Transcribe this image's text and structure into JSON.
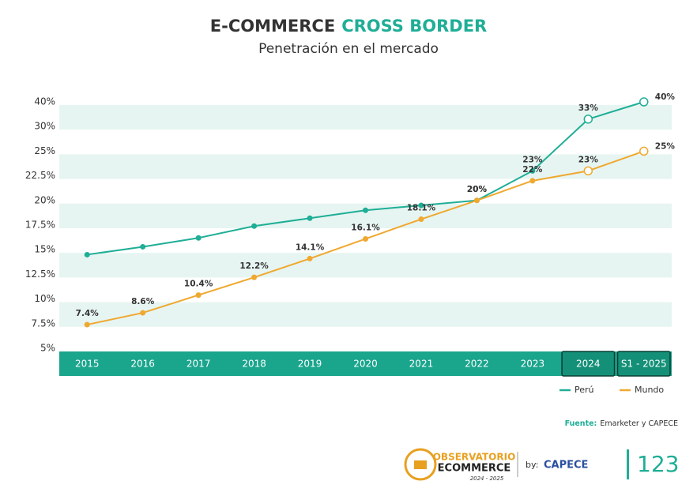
{
  "chart_data": {
    "type": "line",
    "title_parts": [
      "E-COMMERCE",
      "CROSS BORDER"
    ],
    "subtitle": "Penetración en el mercado",
    "categories": [
      "2015",
      "2016",
      "2017",
      "2018",
      "2019",
      "2020",
      "2021",
      "2022",
      "2023",
      "2024",
      "S1 - 2025"
    ],
    "series": [
      {
        "name": "Perú",
        "color": "#1fae96",
        "values": [
          14.5,
          15.3,
          16.2,
          17.4,
          18.2,
          19,
          19.5,
          20,
          23,
          33,
          40
        ],
        "value_labels": [
          null,
          null,
          null,
          null,
          null,
          null,
          null,
          "20%",
          "23%",
          "33%",
          "40%"
        ]
      },
      {
        "name": "Mundo",
        "color": "#f0a830",
        "values": [
          7.4,
          8.6,
          10.4,
          12.2,
          14.1,
          16.1,
          18.1,
          20,
          22,
          23,
          25
        ],
        "value_labels": [
          "7.4%",
          "8.6%",
          "10.4%",
          "12.2%",
          "14.1%",
          "16.1%",
          "18.1%",
          "20%",
          "22%",
          "23%",
          "25%"
        ]
      }
    ],
    "ylim": [
      5,
      40
    ],
    "yticks": [
      {
        "value": 5,
        "label": "5%"
      },
      {
        "value": 7.5,
        "label": "7.5%"
      },
      {
        "value": 10,
        "label": "10%"
      },
      {
        "value": 12.5,
        "label": "12.5%"
      },
      {
        "value": 15,
        "label": "15%"
      },
      {
        "value": 17.5,
        "label": "17.5%"
      },
      {
        "value": 20,
        "label": "20%"
      },
      {
        "value": 22.5,
        "label": "22.5%"
      },
      {
        "value": 25,
        "label": "25%"
      },
      {
        "value": 30,
        "label": "30%"
      },
      {
        "value": 40,
        "label": "40%"
      }
    ],
    "bands": true,
    "projection_start_index": 9,
    "legend": "bottom-right",
    "source": {
      "label": "Fuente:",
      "text": "Emarketer y CAPECE"
    }
  },
  "footer": {
    "logo_line1": "OBSERVATORIO",
    "logo_line2": "ECOMMERCE",
    "logo_years": "2024 - 2025",
    "by": "by:",
    "partner": "CAPECE",
    "page_number": "123"
  }
}
